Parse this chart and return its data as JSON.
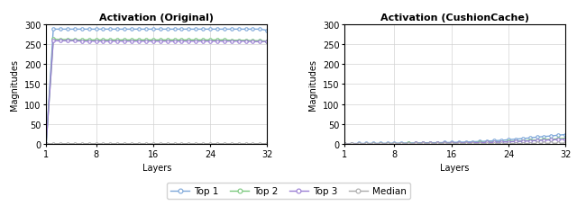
{
  "title_left": "Activation (Original)",
  "title_right": "Activation (CushionCache)",
  "xlabel": "Layers",
  "ylabel": "Magnitudes",
  "layers": [
    1,
    2,
    3,
    4,
    5,
    6,
    7,
    8,
    9,
    10,
    11,
    12,
    13,
    14,
    15,
    16,
    17,
    18,
    19,
    20,
    21,
    22,
    23,
    24,
    25,
    26,
    27,
    28,
    29,
    30,
    31,
    32
  ],
  "xticks": [
    1,
    8,
    16,
    24,
    32
  ],
  "ylim": [
    0,
    300
  ],
  "yticks": [
    0,
    50,
    100,
    150,
    200,
    250,
    300
  ],
  "orig_top1": [
    0.5,
    287,
    287,
    287,
    287,
    287,
    287,
    287,
    287,
    287,
    287,
    287,
    287,
    287,
    287,
    287,
    287,
    287,
    287,
    287,
    287,
    287,
    287,
    287,
    287,
    287,
    287,
    287,
    287,
    287,
    287,
    284
  ],
  "orig_top2": [
    0.3,
    262,
    261,
    261,
    260,
    260,
    260,
    260,
    260,
    260,
    260,
    260,
    260,
    260,
    260,
    260,
    260,
    260,
    260,
    260,
    260,
    260,
    260,
    260,
    260,
    260,
    259,
    259,
    259,
    258,
    258,
    257
  ],
  "orig_top3": [
    0.3,
    258,
    258,
    258,
    258,
    257,
    257,
    257,
    257,
    257,
    257,
    257,
    257,
    257,
    257,
    257,
    257,
    257,
    257,
    257,
    257,
    257,
    257,
    257,
    257,
    257,
    257,
    257,
    257,
    256,
    256,
    256
  ],
  "orig_median": [
    0.1,
    0.5,
    0.5,
    0.5,
    0.5,
    0.5,
    0.5,
    0.5,
    0.5,
    0.5,
    0.5,
    0.5,
    0.5,
    0.5,
    0.5,
    0.5,
    0.5,
    0.5,
    0.5,
    0.5,
    0.5,
    0.5,
    0.5,
    0.5,
    0.5,
    0.5,
    0.5,
    0.5,
    0.5,
    0.5,
    0.5,
    0.5
  ],
  "cc_top1": [
    0.5,
    1.0,
    1.2,
    1.3,
    1.4,
    1.5,
    1.6,
    1.8,
    2.0,
    2.2,
    2.5,
    2.8,
    3.0,
    3.2,
    3.5,
    3.8,
    4.2,
    4.8,
    5.5,
    6.2,
    7.0,
    8.0,
    9.0,
    10.5,
    12.0,
    13.5,
    15.0,
    17.0,
    18.5,
    20.0,
    22.0,
    23.5
  ],
  "cc_top2": [
    0.3,
    0.5,
    0.6,
    0.7,
    0.8,
    0.8,
    0.9,
    1.0,
    1.1,
    1.2,
    1.4,
    1.5,
    1.7,
    1.8,
    2.0,
    2.2,
    2.5,
    2.8,
    3.2,
    3.6,
    4.1,
    4.7,
    5.3,
    6.0,
    7.0,
    7.8,
    8.7,
    9.8,
    10.8,
    11.8,
    12.9,
    14.0
  ],
  "cc_top3": [
    0.3,
    0.5,
    0.5,
    0.6,
    0.7,
    0.7,
    0.8,
    0.9,
    1.0,
    1.1,
    1.2,
    1.4,
    1.5,
    1.6,
    1.8,
    2.0,
    2.2,
    2.5,
    2.8,
    3.2,
    3.6,
    4.1,
    4.7,
    5.3,
    6.0,
    6.8,
    7.5,
    8.5,
    9.3,
    10.2,
    11.1,
    12.0
  ],
  "cc_median": [
    0.1,
    0.2,
    0.2,
    0.2,
    0.2,
    0.2,
    0.2,
    0.3,
    0.3,
    0.3,
    0.3,
    0.3,
    0.3,
    0.3,
    0.4,
    0.4,
    0.4,
    0.5,
    0.5,
    0.5,
    0.6,
    0.6,
    0.7,
    0.8,
    0.9,
    1.0,
    1.1,
    1.3,
    1.4,
    1.5,
    1.7,
    2.0
  ],
  "color_top1": "#7da7d9",
  "color_top2": "#7bc87e",
  "color_top3": "#9b7fd4",
  "color_median": "#aaaaaa",
  "legend_labels": [
    "Top 1",
    "Top 2",
    "Top 3",
    "Median"
  ],
  "marker": "o",
  "markersize": 2.5,
  "linewidth": 1.0,
  "title_fontsize": 8,
  "label_fontsize": 7,
  "tick_fontsize": 7,
  "legend_fontsize": 7.5
}
